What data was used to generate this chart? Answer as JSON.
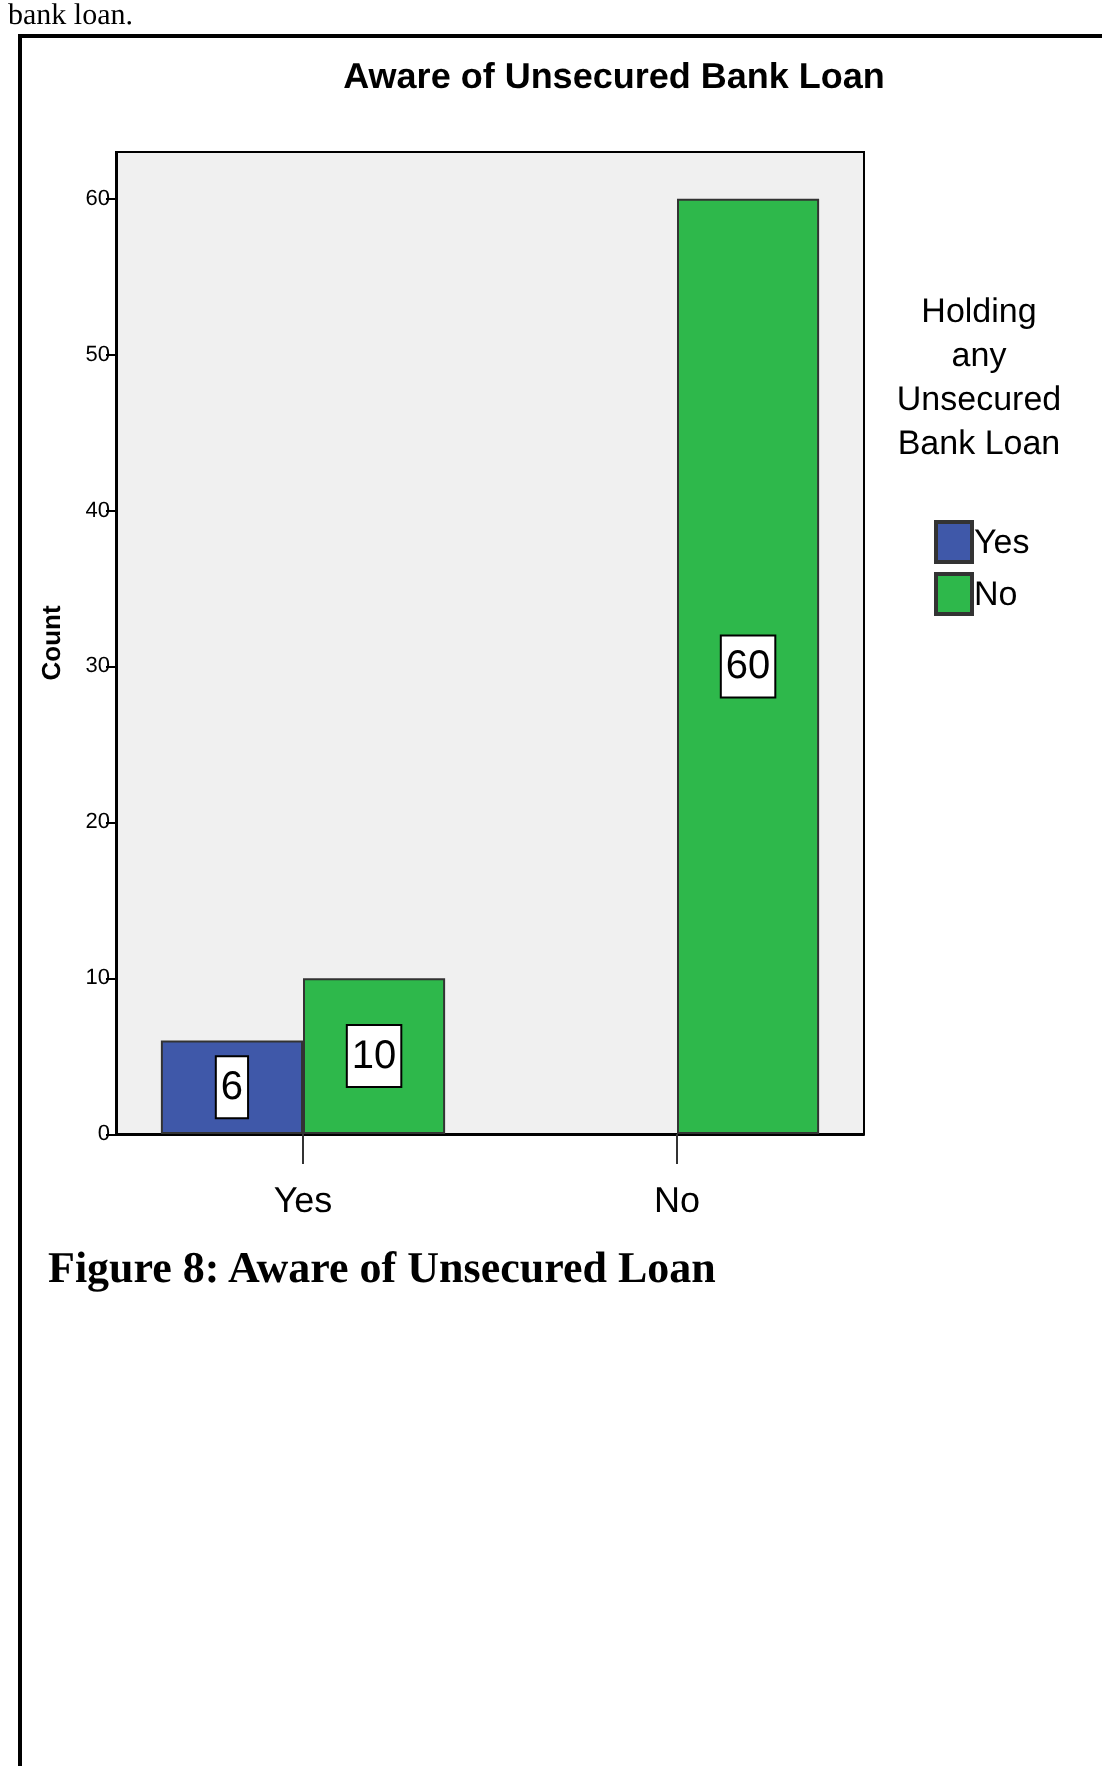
{
  "chart_data": {
    "type": "bar",
    "title": "Aware of Unsecured Bank Loan",
    "ylabel": "Count",
    "legend_title": "Holding any Unsecured Bank Loan",
    "categories": [
      "Yes",
      "No"
    ],
    "series": [
      {
        "name": "Yes",
        "color": "#3f58a9",
        "values": [
          6,
          null
        ]
      },
      {
        "name": "No",
        "color": "#2eb84b",
        "values": [
          10,
          60
        ]
      }
    ],
    "ylim": [
      0,
      63
    ],
    "yticks": [
      0,
      10,
      20,
      30,
      40,
      50,
      60
    ],
    "legend": "right",
    "data_labels": true,
    "annotations": [
      "bank loan.",
      "Figure 8: Aware of Unsecured Loan"
    ]
  }
}
